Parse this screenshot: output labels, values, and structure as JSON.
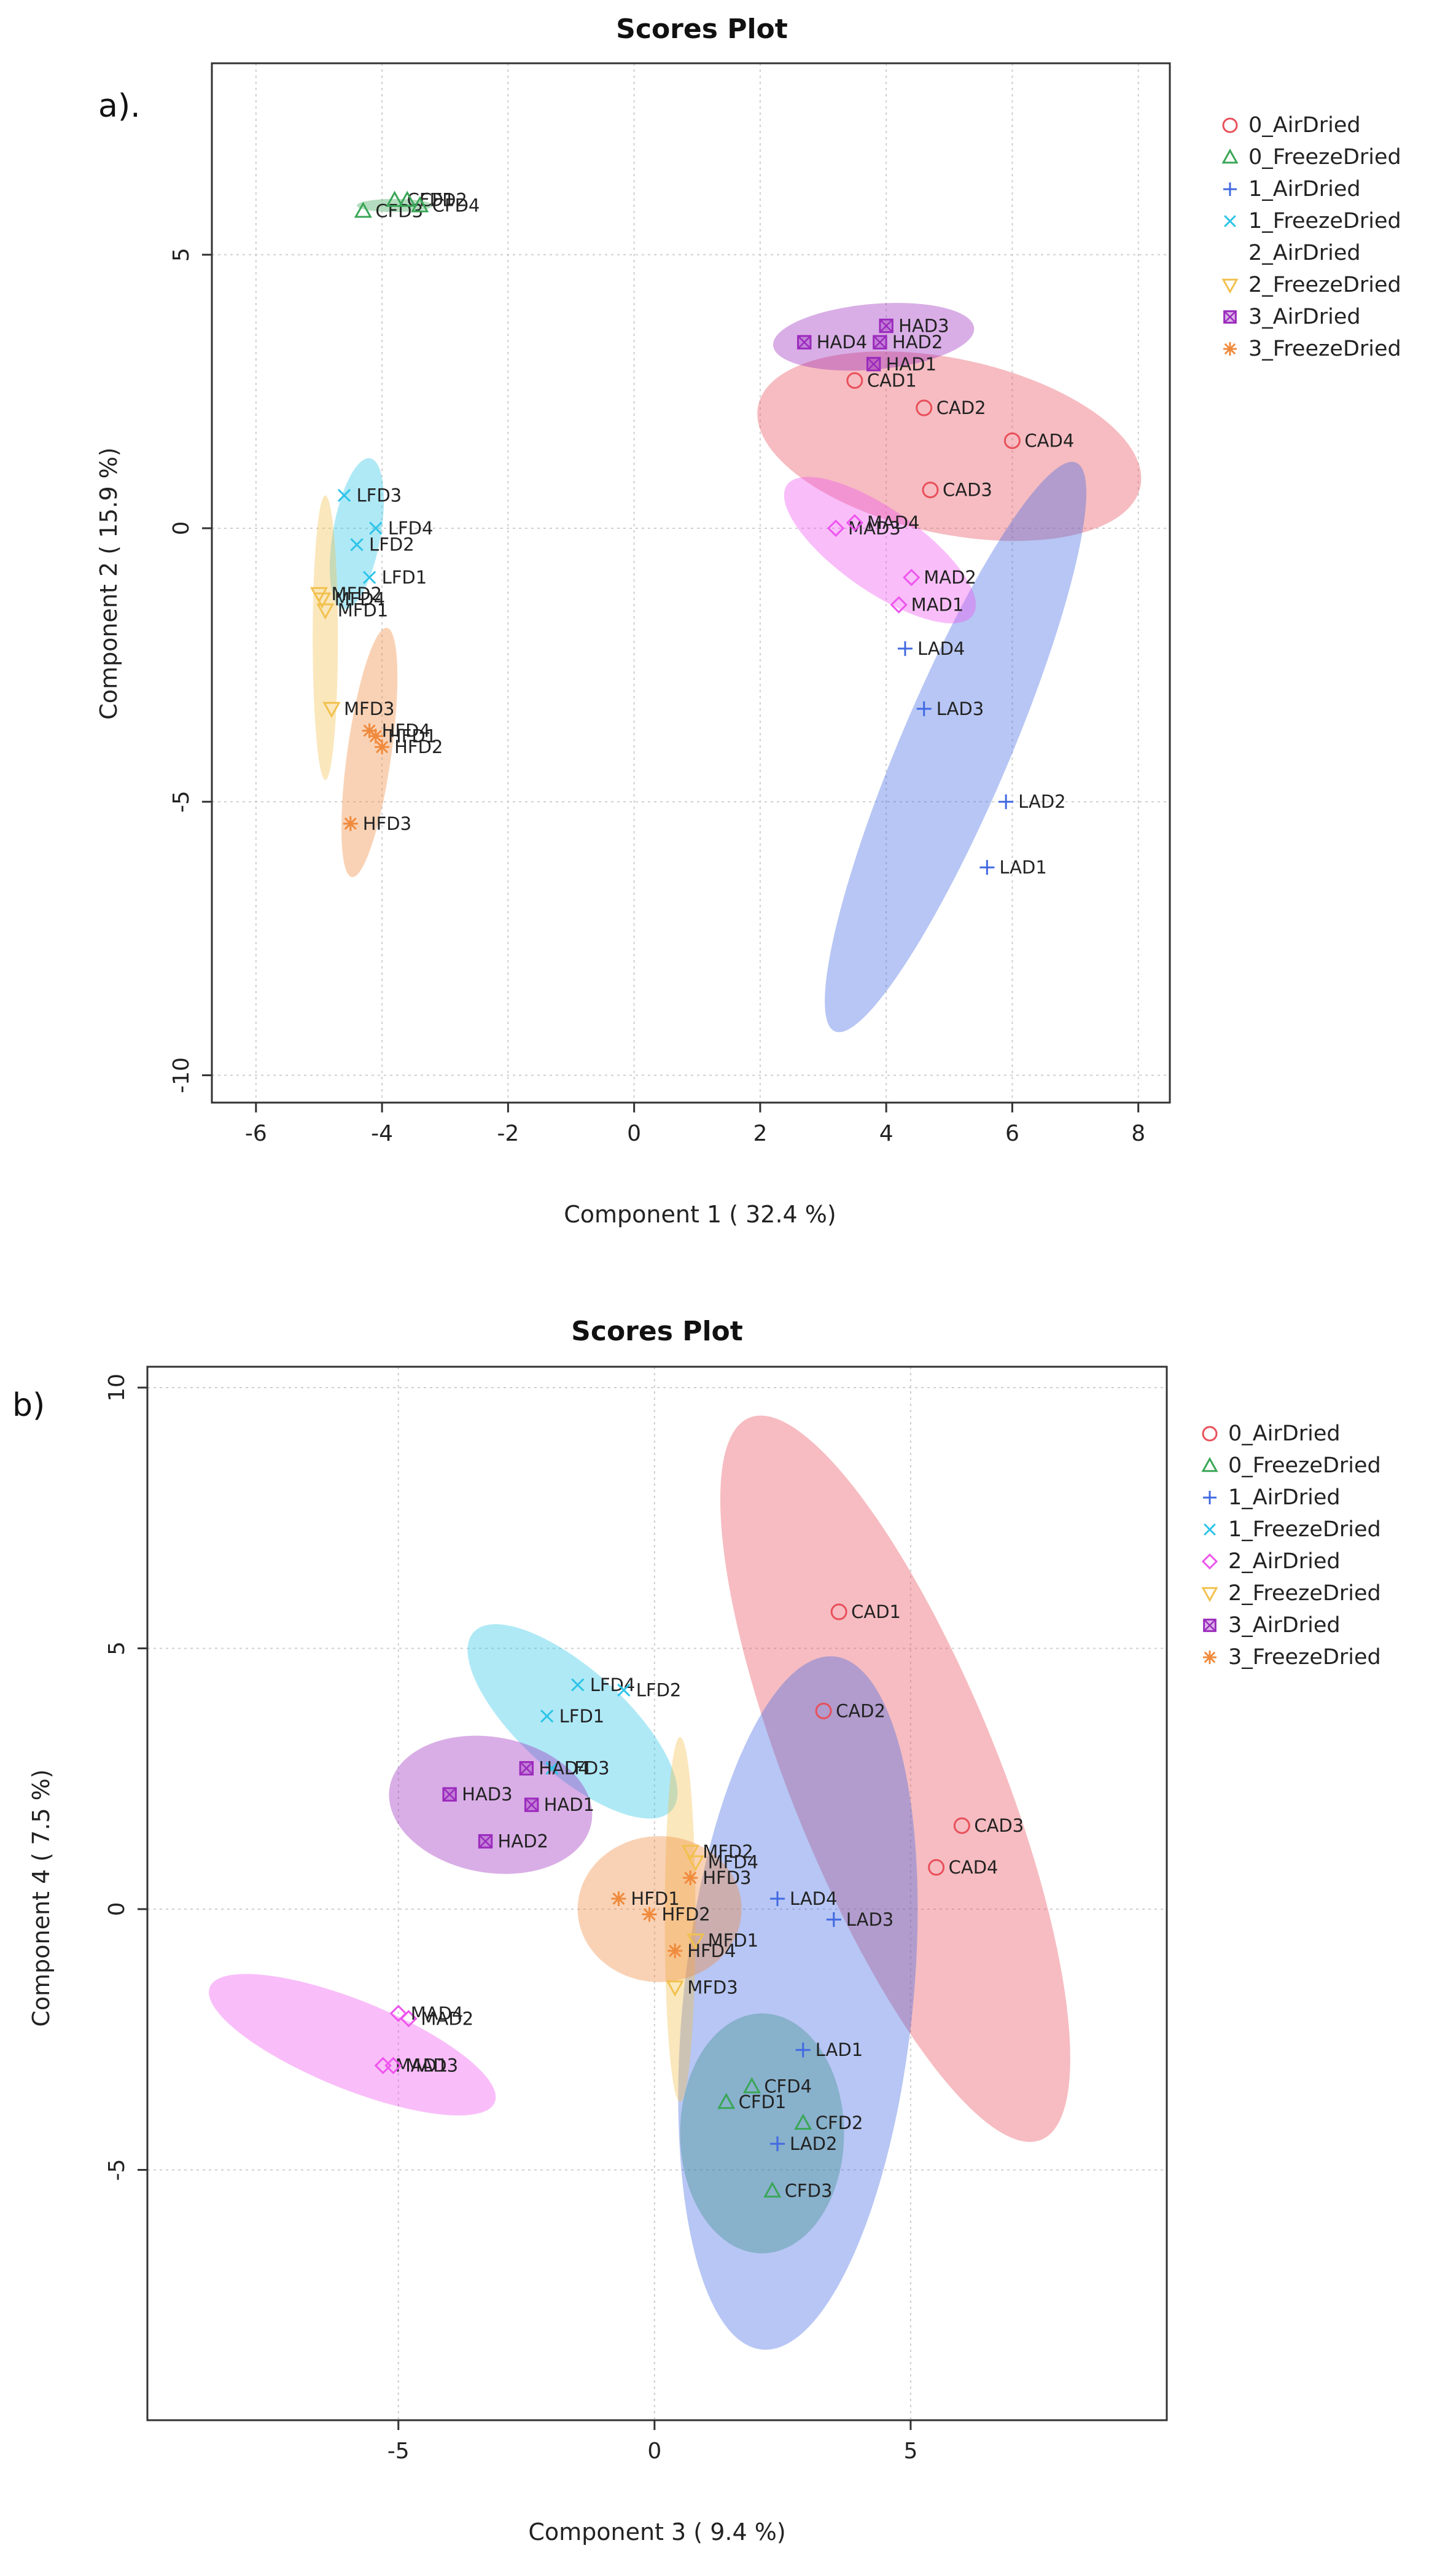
{
  "chart_data": [
    {
      "type": "scatter",
      "panel": "a).",
      "title": "Scores Plot",
      "xlabel": "Component 1 ( 32.4 %)",
      "ylabel": "Component 2 ( 15.9 %)",
      "xlim": [
        -6.7,
        8.5
      ],
      "ylim": [
        -10.5,
        8.5
      ],
      "xticks": [
        -6,
        -4,
        -2,
        0,
        2,
        4,
        6,
        8
      ],
      "yticks": [
        5,
        0,
        -5,
        -10
      ],
      "grid": true,
      "legend_position": "top-right",
      "groups": [
        {
          "name": "0_AirDried",
          "color": "#e8505b",
          "marker": "circle",
          "show_marker_in_legend": true,
          "points": [
            {
              "label": "CAD1",
              "x": 3.5,
              "y": 2.7
            },
            {
              "label": "CAD2",
              "x": 4.6,
              "y": 2.2
            },
            {
              "label": "CAD3",
              "x": 4.7,
              "y": 0.7
            },
            {
              "label": "CAD4",
              "x": 6.0,
              "y": 1.6
            }
          ],
          "ellipse": {
            "cx": 5.0,
            "cy": 1.5,
            "rx": 3.1,
            "ry": 1.6,
            "angle": -12
          }
        },
        {
          "name": "0_FreezeDried",
          "color": "#3aa657",
          "marker": "triangle",
          "show_marker_in_legend": true,
          "points": [
            {
              "label": "CFD3",
              "x": -4.3,
              "y": 5.8
            },
            {
              "label": "CFD1",
              "x": -3.8,
              "y": 6.0
            },
            {
              "label": "CFD2",
              "x": -3.6,
              "y": 6.0
            },
            {
              "label": "CFD4",
              "x": -3.4,
              "y": 5.9
            }
          ],
          "ellipse": {
            "cx": -3.8,
            "cy": 5.9,
            "rx": 0.6,
            "ry": 0.12,
            "angle": 0
          }
        },
        {
          "name": "1_AirDried",
          "color": "#4169e1",
          "marker": "plus",
          "show_marker_in_legend": true,
          "points": [
            {
              "label": "LAD1",
              "x": 5.6,
              "y": -6.2
            },
            {
              "label": "LAD2",
              "x": 5.9,
              "y": -5.0
            },
            {
              "label": "LAD3",
              "x": 4.6,
              "y": -3.3
            },
            {
              "label": "LAD4",
              "x": 4.3,
              "y": -2.2
            }
          ],
          "ellipse": {
            "cx": 5.1,
            "cy": -4.0,
            "rx": 4.9,
            "ry": 1.0,
            "angle": 67
          }
        },
        {
          "name": "1_FreezeDried",
          "color": "#2ec4e8",
          "marker": "cross",
          "show_marker_in_legend": true,
          "points": [
            {
              "label": "LFD3",
              "x": -4.6,
              "y": 0.6
            },
            {
              "label": "LFD4",
              "x": -4.1,
              "y": 0.0
            },
            {
              "label": "LFD2",
              "x": -4.4,
              "y": -0.3
            },
            {
              "label": "LFD1",
              "x": -4.2,
              "y": -0.9
            }
          ],
          "ellipse": {
            "cx": -4.4,
            "cy": -0.1,
            "rx": 0.38,
            "ry": 1.4,
            "angle": -10
          }
        },
        {
          "name": "2_AirDried",
          "color": "#ee55ee",
          "marker": "diamond",
          "show_marker_in_legend": false,
          "points": [
            {
              "label": "MAD1",
              "x": 4.2,
              "y": -1.4
            },
            {
              "label": "MAD2",
              "x": 4.4,
              "y": -0.9
            },
            {
              "label": "MAD3",
              "x": 3.2,
              "y": 0.0
            },
            {
              "label": "MAD4",
              "x": 3.5,
              "y": 0.1
            }
          ],
          "ellipse": {
            "cx": 3.9,
            "cy": -0.4,
            "rx": 1.8,
            "ry": 0.75,
            "angle": -35
          }
        },
        {
          "name": "2_FreezeDried",
          "color": "#f2c14e",
          "marker": "triangle-down",
          "show_marker_in_legend": true,
          "points": [
            {
              "label": "MFD1",
              "x": -4.9,
              "y": -1.5
            },
            {
              "label": "MFD2",
              "x": -5.0,
              "y": -1.2
            },
            {
              "label": "MFD4",
              "x": -4.95,
              "y": -1.3
            },
            {
              "label": "MFD3",
              "x": -4.8,
              "y": -3.3
            }
          ],
          "ellipse": {
            "cx": -4.9,
            "cy": -2.0,
            "rx": 0.2,
            "ry": 2.6,
            "angle": 0
          }
        },
        {
          "name": "3_AirDried",
          "color": "#9b2bbd",
          "marker": "boxed-cross",
          "show_marker_in_legend": true,
          "points": [
            {
              "label": "HAD1",
              "x": 3.8,
              "y": 3.0
            },
            {
              "label": "HAD2",
              "x": 3.9,
              "y": 3.4
            },
            {
              "label": "HAD3",
              "x": 4.0,
              "y": 3.7
            },
            {
              "label": "HAD4",
              "x": 2.7,
              "y": 3.4
            }
          ],
          "ellipse": {
            "cx": 3.8,
            "cy": 3.5,
            "rx": 1.6,
            "ry": 0.6,
            "angle": 5
          }
        },
        {
          "name": "3_FreezeDried",
          "color": "#f08a3c",
          "marker": "asterisk",
          "show_marker_in_legend": true,
          "points": [
            {
              "label": "HFD1",
              "x": -4.1,
              "y": -3.8
            },
            {
              "label": "HFD2",
              "x": -4.0,
              "y": -4.0
            },
            {
              "label": "HFD4",
              "x": -4.2,
              "y": -3.7
            },
            {
              "label": "HFD3",
              "x": -4.5,
              "y": -5.4
            }
          ],
          "ellipse": {
            "cx": -4.2,
            "cy": -4.1,
            "rx": 0.35,
            "ry": 2.3,
            "angle": -8
          }
        }
      ]
    },
    {
      "type": "scatter",
      "panel": "b)",
      "title": "Scores Plot",
      "xlabel": "Component 3 ( 9.4 %)",
      "ylabel": "Component 4 ( 7.5 %)",
      "xlim": [
        -9.9,
        10.0
      ],
      "ylim": [
        -9.8,
        10.4
      ],
      "xticks": [
        -5,
        0,
        5
      ],
      "yticks": [
        10,
        5,
        0,
        -5
      ],
      "grid": true,
      "legend_position": "top-right",
      "groups": [
        {
          "name": "0_AirDried",
          "color": "#e8505b",
          "marker": "circle",
          "show_marker_in_legend": true,
          "points": [
            {
              "label": "CAD1",
              "x": 3.6,
              "y": 5.7
            },
            {
              "label": "CAD2",
              "x": 3.3,
              "y": 3.8
            },
            {
              "label": "CAD3",
              "x": 6.0,
              "y": 1.6
            },
            {
              "label": "CAD4",
              "x": 5.5,
              "y": 0.8
            }
          ],
          "ellipse": {
            "cx": 4.7,
            "cy": 2.5,
            "rx": 7.6,
            "ry": 2.0,
            "angle": -68
          }
        },
        {
          "name": "0_FreezeDried",
          "color": "#3aa657",
          "marker": "triangle",
          "show_marker_in_legend": true,
          "points": [
            {
              "label": "CFD1",
              "x": 1.4,
              "y": -3.7
            },
            {
              "label": "CFD4",
              "x": 1.9,
              "y": -3.4
            },
            {
              "label": "CFD2",
              "x": 2.9,
              "y": -4.1
            },
            {
              "label": "CFD3",
              "x": 2.3,
              "y": -5.4
            }
          ],
          "ellipse": {
            "cx": 2.1,
            "cy": -4.3,
            "rx": 1.6,
            "ry": 2.3,
            "angle": 0
          }
        },
        {
          "name": "1_AirDried",
          "color": "#4169e1",
          "marker": "plus",
          "show_marker_in_legend": true,
          "points": [
            {
              "label": "LAD1",
              "x": 2.9,
              "y": -2.7
            },
            {
              "label": "LAD2",
              "x": 2.4,
              "y": -4.5
            },
            {
              "label": "LAD3",
              "x": 3.5,
              "y": -0.2
            },
            {
              "label": "LAD4",
              "x": 2.4,
              "y": 0.2
            }
          ],
          "ellipse": {
            "cx": 2.8,
            "cy": -1.8,
            "rx": 6.8,
            "ry": 2.2,
            "angle": 84
          }
        },
        {
          "name": "1_FreezeDried",
          "color": "#2ec4e8",
          "marker": "cross",
          "show_marker_in_legend": true,
          "points": [
            {
              "label": "LFD4",
              "x": -1.5,
              "y": 4.3
            },
            {
              "label": "LFD2",
              "x": -0.6,
              "y": 4.2
            },
            {
              "label": "LFD1",
              "x": -2.1,
              "y": 3.7
            },
            {
              "label": "LFD3",
              "x": -2.0,
              "y": 2.7
            }
          ],
          "ellipse": {
            "cx": -1.6,
            "cy": 3.6,
            "rx": 2.6,
            "ry": 1.0,
            "angle": -42
          }
        },
        {
          "name": "2_AirDried",
          "color": "#ee55ee",
          "marker": "diamond",
          "show_marker_in_legend": true,
          "points": [
            {
              "label": "MAD1",
              "x": -5.3,
              "y": -3.0
            },
            {
              "label": "MAD2",
              "x": -4.8,
              "y": -2.1
            },
            {
              "label": "MAD3",
              "x": -5.1,
              "y": -3.0
            },
            {
              "label": "MAD4",
              "x": -5.0,
              "y": -2.0
            }
          ],
          "ellipse": {
            "cx": -5.9,
            "cy": -2.6,
            "rx": 3.0,
            "ry": 0.85,
            "angle": -22
          }
        },
        {
          "name": "2_FreezeDried",
          "color": "#f2c14e",
          "marker": "triangle-down",
          "show_marker_in_legend": true,
          "points": [
            {
              "label": "MFD2",
              "x": 0.7,
              "y": 1.1
            },
            {
              "label": "MFD4",
              "x": 0.8,
              "y": 0.9
            },
            {
              "label": "MFD1",
              "x": 0.8,
              "y": -0.6
            },
            {
              "label": "MFD3",
              "x": 0.4,
              "y": -1.5
            }
          ],
          "ellipse": {
            "cx": 0.5,
            "cy": -0.2,
            "rx": 0.3,
            "ry": 3.5,
            "angle": 0
          }
        },
        {
          "name": "3_AirDried",
          "color": "#9b2bbd",
          "marker": "boxed-cross",
          "show_marker_in_legend": true,
          "points": [
            {
              "label": "HAD3",
              "x": -4.0,
              "y": 2.2
            },
            {
              "label": "HAD1",
              "x": -2.4,
              "y": 2.0
            },
            {
              "label": "HAD2",
              "x": -3.3,
              "y": 1.3
            },
            {
              "label": "HAD4",
              "x": -2.5,
              "y": 2.7
            }
          ],
          "ellipse": {
            "cx": -3.2,
            "cy": 2.0,
            "rx": 2.0,
            "ry": 1.3,
            "angle": -10
          }
        },
        {
          "name": "3_FreezeDried",
          "color": "#f08a3c",
          "marker": "asterisk",
          "show_marker_in_legend": true,
          "points": [
            {
              "label": "HFD1",
              "x": -0.7,
              "y": 0.2
            },
            {
              "label": "HFD2",
              "x": -0.1,
              "y": -0.1
            },
            {
              "label": "HFD3",
              "x": 0.7,
              "y": 0.6
            },
            {
              "label": "HFD4",
              "x": 0.4,
              "y": -0.8
            }
          ],
          "ellipse": {
            "cx": 0.1,
            "cy": 0.0,
            "rx": 1.6,
            "ry": 1.4,
            "angle": 0
          }
        }
      ]
    }
  ]
}
